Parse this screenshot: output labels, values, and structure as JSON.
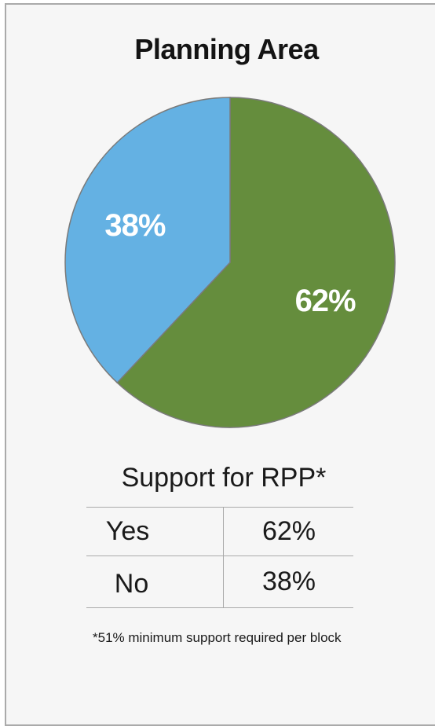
{
  "chart_data": {
    "type": "pie",
    "title": "Planning Area",
    "slices": [
      {
        "label": "62%",
        "value": 62,
        "color": "#658d3d"
      },
      {
        "label": "38%",
        "value": 38,
        "color": "#64b1e3"
      }
    ]
  },
  "table": {
    "title": "Support for RPP*",
    "rows": [
      {
        "label": "Yes",
        "value": "62%"
      },
      {
        "label": "No",
        "value": "38%"
      }
    ]
  },
  "footnote": "*51% minimum support required per block"
}
